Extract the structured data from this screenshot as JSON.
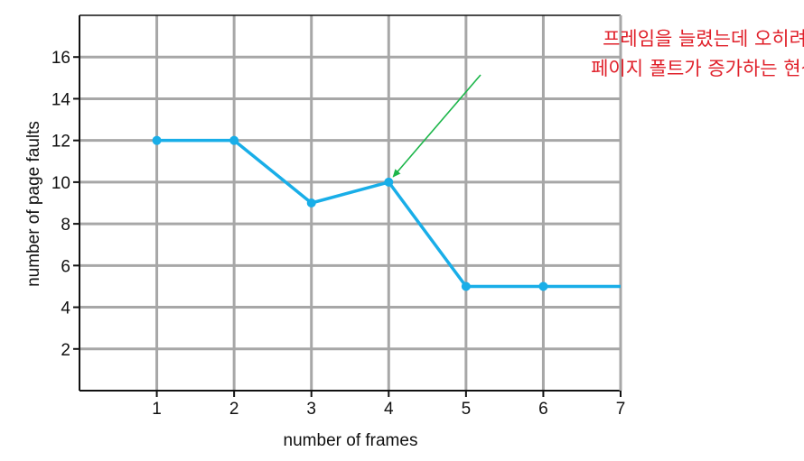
{
  "colors": {
    "series_line": "#19aee8",
    "grid": "#a7a7a7",
    "axis": "#111111",
    "annotation_text": "#e0202a",
    "annotation_arrow": "#1cb64a",
    "background": "#ffffff"
  },
  "chart_data": {
    "type": "line",
    "title": "",
    "xlabel": "number of frames",
    "ylabel": "number of page faults",
    "xlim": [
      0,
      7
    ],
    "ylim": [
      0,
      18
    ],
    "x_ticks": [
      1,
      2,
      3,
      4,
      5,
      6,
      7
    ],
    "x_tick_labels": [
      "1",
      "2",
      "3",
      "4",
      "5",
      "6",
      "7"
    ],
    "y_ticks": [
      2,
      4,
      6,
      8,
      10,
      12,
      14,
      16
    ],
    "y_tick_labels": [
      "2",
      "4",
      "6",
      "8",
      "10",
      "12",
      "14",
      "16"
    ],
    "grid": true,
    "legend": "none",
    "series": [
      {
        "x": [
          1,
          2,
          3,
          4,
          5,
          6,
          7
        ],
        "y": [
          12,
          12,
          9,
          10,
          5,
          5,
          5
        ],
        "markers": [
          true,
          true,
          true,
          true,
          true,
          true,
          false
        ]
      }
    ],
    "annotations": [
      {
        "lines": [
          "프레임을 늘렸는데 오히려",
          "페이지 폴트가 증가하는 현상"
        ],
        "arrow_target": {
          "x": 4,
          "y": 10
        }
      }
    ]
  }
}
